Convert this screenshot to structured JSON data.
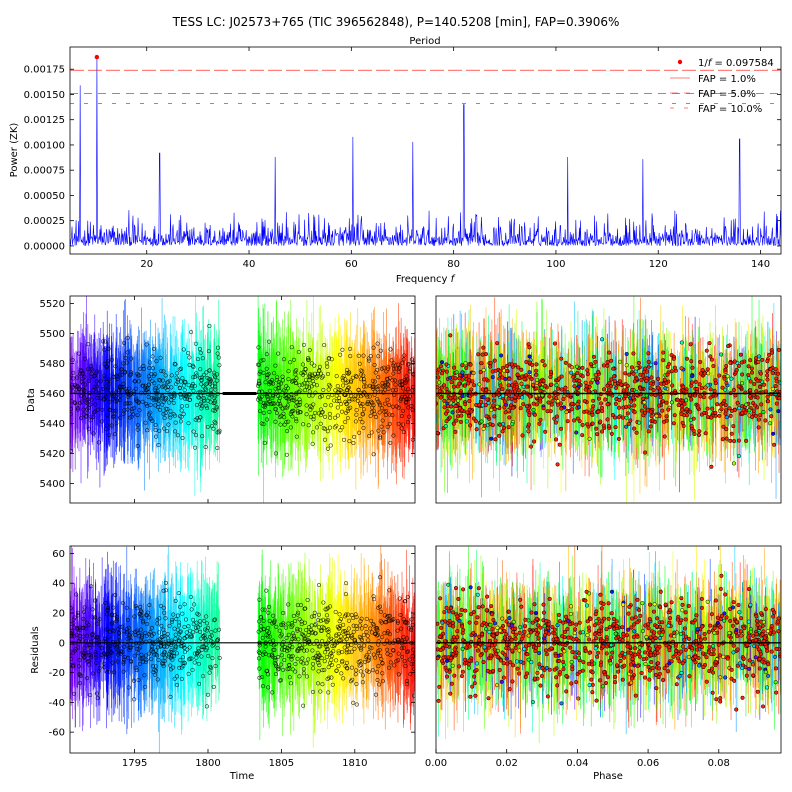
{
  "figure": {
    "title": "TESS LC: J02573+765 (TIC 396562848), P=140.5208 [min], FAP=0.3906%"
  },
  "colors": {
    "periodogram": "#0000ff",
    "peak": "#ff0000",
    "fap": "#ff0000",
    "model": "#000000",
    "marker_edge": "#000000"
  },
  "chart_data": [
    {
      "id": "periodogram",
      "type": "line",
      "title": "Period",
      "xlabel": "Frequency $f$",
      "ylabel": "Power (ZK)",
      "xlim": [
        5,
        144
      ],
      "ylim": [
        -8e-05,
        0.00197
      ],
      "xticks": [
        20,
        40,
        60,
        80,
        100,
        120,
        140
      ],
      "yticks": [
        "0.00000",
        "0.00025",
        "0.00050",
        "0.00075",
        "0.00100",
        "0.00125",
        "0.00150",
        "0.00175"
      ],
      "noise_level": 0.00022,
      "peaks": [
        {
          "x": 7.0,
          "y": 0.00159
        },
        {
          "x": 10.25,
          "y": 0.00187
        },
        {
          "x": 60.3,
          "y": 0.00108
        },
        {
          "x": 82.0,
          "y": 0.0014
        },
        {
          "x": 72.0,
          "y": 0.00103
        },
        {
          "x": 135.9,
          "y": 0.00106
        },
        {
          "x": 22.5,
          "y": 0.00092
        },
        {
          "x": 45.1,
          "y": 0.00088
        },
        {
          "x": 102.3,
          "y": 0.00088
        },
        {
          "x": 117.0,
          "y": 0.00086
        }
      ],
      "best": {
        "x": 10.25,
        "y": 0.00187
      },
      "fap_levels": [
        {
          "label": "FAP = 1.0%",
          "value": 0.00174,
          "dash": "14,4"
        },
        {
          "label": "FAP = 5.0%",
          "value": 0.00151,
          "dash": "8,6"
        },
        {
          "label": "FAP = 10.0%",
          "value": 0.00141,
          "dash": "4,10"
        }
      ],
      "legend": {
        "location": "top-right",
        "best_label": "1/$f$ = 0.097584"
      }
    },
    {
      "id": "data_time",
      "type": "scatter",
      "xlabel": "",
      "ylabel": "Data",
      "xlim": [
        1790.6,
        1814.1
      ],
      "ylim": [
        5387,
        5525
      ],
      "xticks": [
        1795,
        1800,
        1805,
        1810
      ],
      "yticks": [
        5400,
        5420,
        5440,
        5460,
        5480,
        5500,
        5520
      ],
      "segments": [
        [
          1790.6,
          1800.8
        ],
        [
          1803.4,
          1814.1
        ]
      ],
      "mean": 5460,
      "scatter": 15,
      "model_gap": [
        1801.0,
        1803.3
      ]
    },
    {
      "id": "data_phase",
      "type": "scatter",
      "xlabel": "",
      "ylabel": "",
      "xlim": [
        0,
        0.0976
      ],
      "ylim": [
        5387,
        5525
      ],
      "mean": 5460,
      "scatter": 15
    },
    {
      "id": "resid_time",
      "type": "scatter",
      "xlabel": "Time",
      "ylabel": "Residuals",
      "xlim": [
        1790.6,
        1814.1
      ],
      "ylim": [
        -74,
        65
      ],
      "xticks": [
        1795,
        1800,
        1805,
        1810
      ],
      "xtick_labels": [
        "1795",
        "1800",
        "1805",
        "1810"
      ],
      "yticks": [
        -60,
        -40,
        -20,
        0,
        20,
        40,
        60
      ],
      "segments": [
        [
          1790.6,
          1800.8
        ],
        [
          1803.4,
          1814.1
        ]
      ],
      "mean": 0,
      "scatter": 15
    },
    {
      "id": "resid_phase",
      "type": "scatter",
      "xlabel": "Phase",
      "ylabel": "",
      "xlim": [
        0,
        0.0976
      ],
      "ylim": [
        -74,
        65
      ],
      "xticks": [
        0.0,
        0.02,
        0.04,
        0.06,
        0.08
      ],
      "xtick_labels": [
        "0.00",
        "0.02",
        "0.04",
        "0.06",
        "0.08"
      ],
      "mean": 0,
      "scatter": 15
    }
  ]
}
